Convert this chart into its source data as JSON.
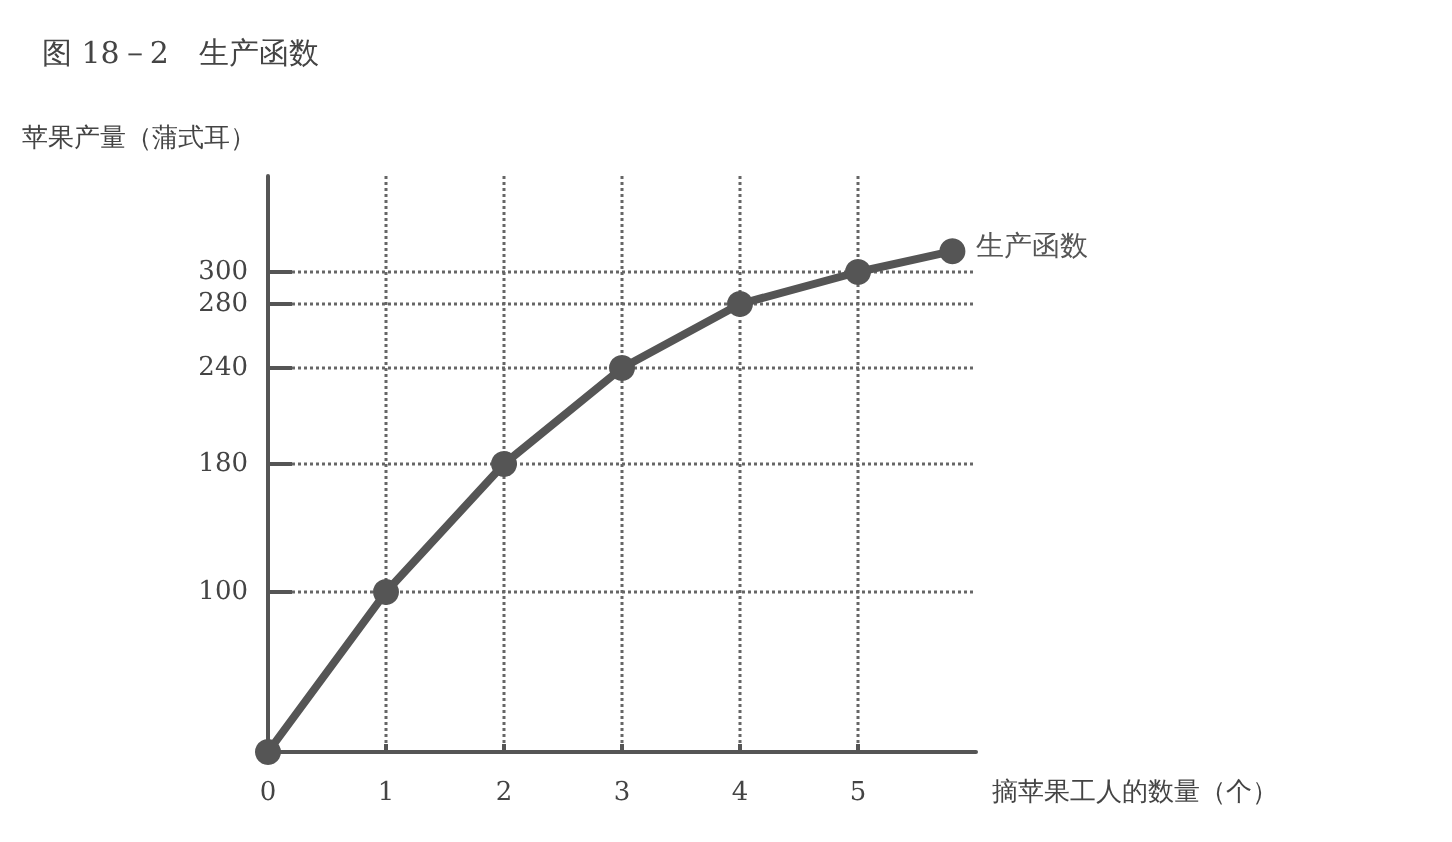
{
  "chart_data": {
    "type": "line",
    "title": "图 18－2　生产函数",
    "xlabel": "摘苹果工人的数量（个）",
    "ylabel": "苹果产量（蒲式耳）",
    "x": [
      0,
      1,
      2,
      3,
      4,
      5,
      5.8
    ],
    "series": [
      {
        "name": "生产函数",
        "color": "#555555",
        "values": [
          0,
          100,
          180,
          240,
          280,
          300,
          313
        ]
      }
    ],
    "xlim": [
      0,
      6
    ],
    "xticks": [
      0,
      1,
      2,
      3,
      4,
      5
    ],
    "ylim": [
      0,
      360
    ],
    "yticks": [
      100,
      180,
      240,
      280,
      300
    ],
    "grid": true,
    "marker": "circle",
    "line_style": "solid",
    "legend": false
  }
}
